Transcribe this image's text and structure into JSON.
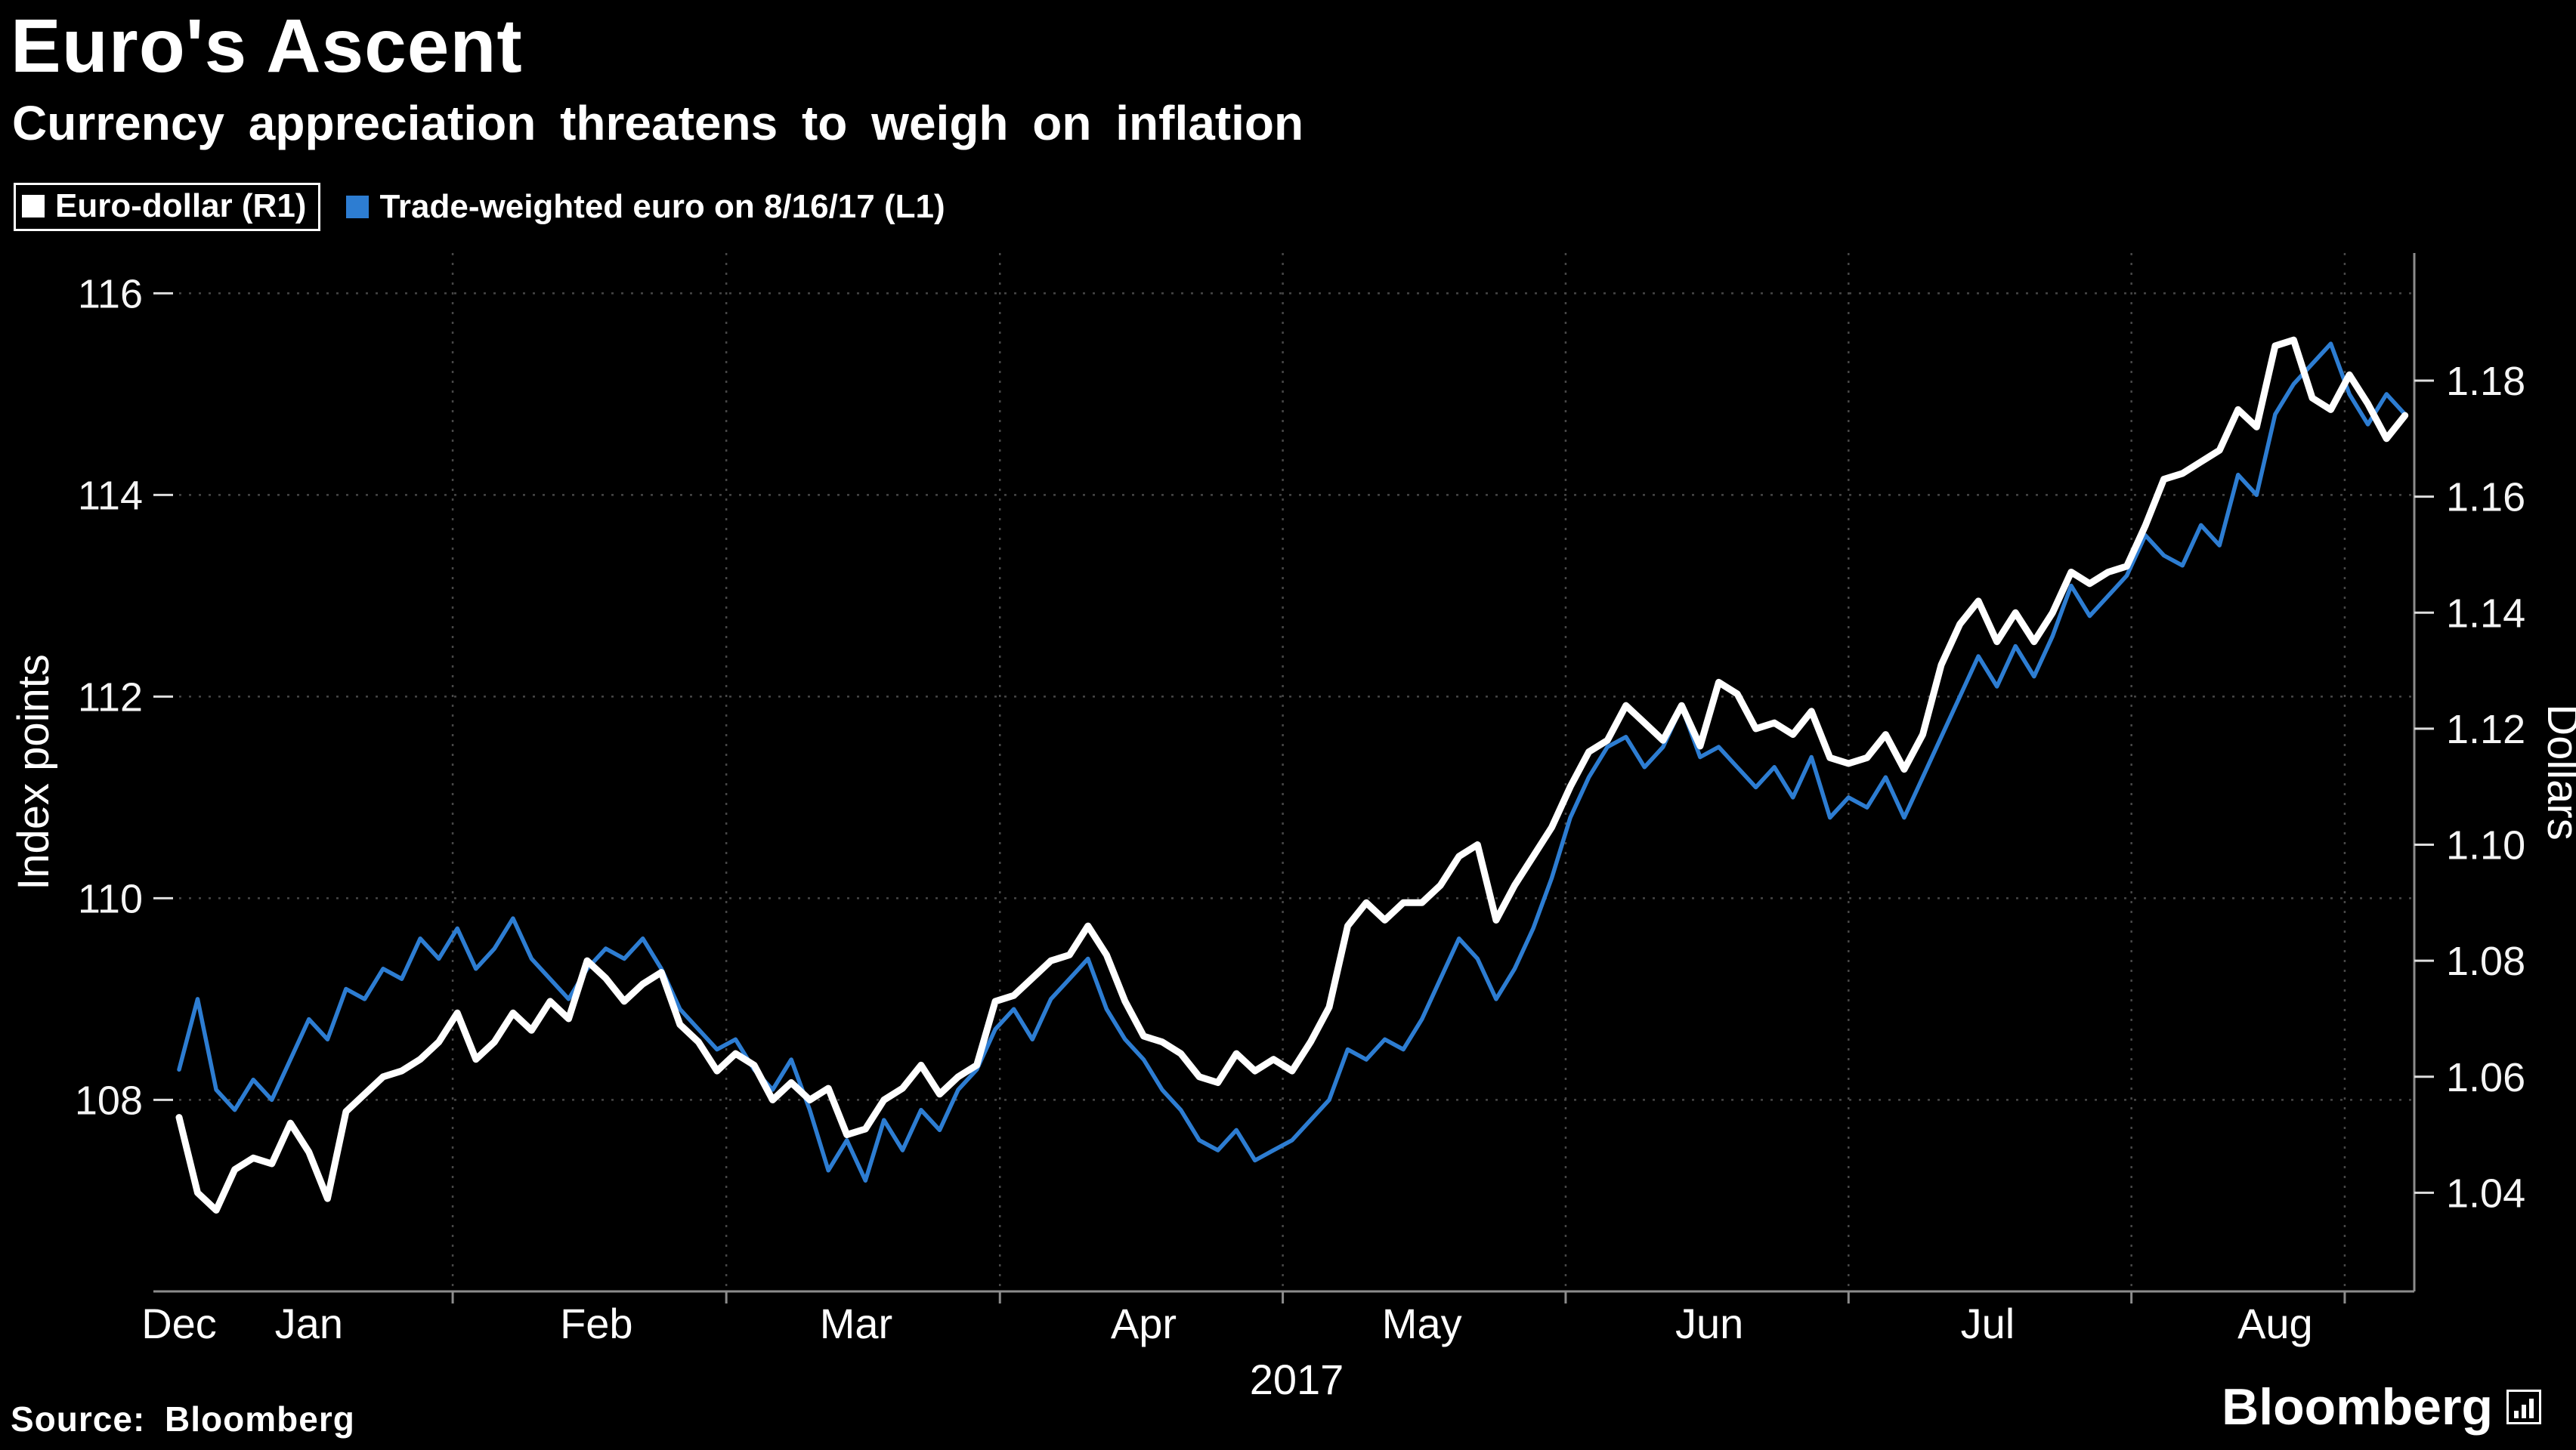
{
  "header": {
    "title": "Euro's Ascent",
    "subtitle": "Currency appreciation threatens to weigh on inflation"
  },
  "legend": [
    {
      "label": "Euro-dollar (R1)",
      "color": "#ffffff"
    },
    {
      "label": "Trade-weighted euro on 8/16/17 (L1)",
      "color": "#2d7dd2"
    }
  ],
  "footer": {
    "source": "Source: Bloomberg",
    "brand": "Bloomberg"
  },
  "colors": {
    "background": "#000000",
    "grid": "#474747",
    "axis_line": "#8c8c8c",
    "euro_dollar_line": "#ffffff",
    "trade_weighted_line": "#2d7dd2"
  },
  "chart_data": {
    "type": "line",
    "title": "Euro's Ascent",
    "subtitle": "Currency appreciation threatens to weigh on inflation",
    "grid": true,
    "legend_position": "top-left",
    "x_axis": {
      "label": "2017",
      "start_day": 0,
      "end_day": 241,
      "note": "day 0 = Dec 18 2016, day 241 = Aug 16 2017",
      "month_ticks": [
        {
          "label": "Dec",
          "day": 0
        },
        {
          "label": "Jan",
          "day": 14
        },
        {
          "label": "Feb",
          "day": 45
        },
        {
          "label": "Mar",
          "day": 73
        },
        {
          "label": "Apr",
          "day": 104
        },
        {
          "label": "May",
          "day": 134
        },
        {
          "label": "Jun",
          "day": 165
        },
        {
          "label": "Jul",
          "day": 195
        },
        {
          "label": "Aug",
          "day": 226
        }
      ],
      "grid_days": [
        29.5,
        59,
        88.5,
        119,
        149.5,
        180,
        210.5,
        233.5
      ]
    },
    "left_axis": {
      "label": "Index points",
      "ticks": [
        108,
        110,
        112,
        114,
        116
      ],
      "min": 106.1,
      "max": 116.4
    },
    "right_axis": {
      "label": "Dollars",
      "ticks": [
        "1.04",
        "1.06",
        "1.08",
        "1.10",
        "1.12",
        "1.14",
        "1.16",
        "1.18"
      ],
      "min": 1.023,
      "max": 1.202
    },
    "series": [
      {
        "name": "Euro-dollar (R1)",
        "axis": "right",
        "color": "#ffffff",
        "stroke_width": 9,
        "step_days": 2,
        "values": [
          1.053,
          1.04,
          1.037,
          1.044,
          1.046,
          1.045,
          1.052,
          1.047,
          1.039,
          1.054,
          1.057,
          1.06,
          1.061,
          1.063,
          1.066,
          1.071,
          1.063,
          1.066,
          1.071,
          1.068,
          1.073,
          1.07,
          1.08,
          1.077,
          1.073,
          1.076,
          1.078,
          1.069,
          1.066,
          1.061,
          1.064,
          1.062,
          1.056,
          1.059,
          1.056,
          1.058,
          1.05,
          1.051,
          1.056,
          1.058,
          1.062,
          1.057,
          1.06,
          1.062,
          1.073,
          1.074,
          1.077,
          1.08,
          1.081,
          1.086,
          1.081,
          1.073,
          1.067,
          1.066,
          1.064,
          1.06,
          1.059,
          1.064,
          1.061,
          1.063,
          1.061,
          1.066,
          1.072,
          1.086,
          1.09,
          1.087,
          1.09,
          1.09,
          1.093,
          1.098,
          1.1,
          1.087,
          1.093,
          1.098,
          1.103,
          1.11,
          1.116,
          1.118,
          1.124,
          1.121,
          1.118,
          1.124,
          1.117,
          1.128,
          1.126,
          1.12,
          1.121,
          1.119,
          1.123,
          1.115,
          1.114,
          1.115,
          1.119,
          1.113,
          1.119,
          1.131,
          1.138,
          1.142,
          1.135,
          1.14,
          1.135,
          1.14,
          1.147,
          1.145,
          1.147,
          1.148,
          1.155,
          1.163,
          1.164,
          1.166,
          1.168,
          1.175,
          1.172,
          1.186,
          1.187,
          1.177,
          1.175,
          1.181,
          1.176,
          1.17,
          1.174
        ]
      },
      {
        "name": "Trade-weighted euro on 8/16/17 (L1)",
        "axis": "left",
        "color": "#2d7dd2",
        "stroke_width": 5.5,
        "step_days": 2,
        "values": [
          108.3,
          109.0,
          108.1,
          107.9,
          108.2,
          108.0,
          108.4,
          108.8,
          108.6,
          109.1,
          109.0,
          109.3,
          109.2,
          109.6,
          109.4,
          109.7,
          109.3,
          109.5,
          109.8,
          109.4,
          109.2,
          109.0,
          109.3,
          109.5,
          109.4,
          109.6,
          109.3,
          108.9,
          108.7,
          108.5,
          108.6,
          108.3,
          108.1,
          108.4,
          107.9,
          107.3,
          107.6,
          107.2,
          107.8,
          107.5,
          107.9,
          107.7,
          108.1,
          108.3,
          108.7,
          108.9,
          108.6,
          109.0,
          109.2,
          109.4,
          108.9,
          108.6,
          108.4,
          108.1,
          107.9,
          107.6,
          107.5,
          107.7,
          107.4,
          107.5,
          107.6,
          107.8,
          108.0,
          108.5,
          108.4,
          108.6,
          108.5,
          108.8,
          109.2,
          109.6,
          109.4,
          109.0,
          109.3,
          109.7,
          110.2,
          110.8,
          111.2,
          111.5,
          111.6,
          111.3,
          111.5,
          111.9,
          111.4,
          111.5,
          111.3,
          111.1,
          111.3,
          111.0,
          111.4,
          110.8,
          111.0,
          110.9,
          111.2,
          110.8,
          111.2,
          111.6,
          112.0,
          112.4,
          112.1,
          112.5,
          112.2,
          112.6,
          113.1,
          112.8,
          113.0,
          113.2,
          113.6,
          113.4,
          113.3,
          113.7,
          113.5,
          114.2,
          114.0,
          114.8,
          115.1,
          115.3,
          115.5,
          115.0,
          114.7,
          115.0,
          114.8
        ]
      }
    ]
  }
}
